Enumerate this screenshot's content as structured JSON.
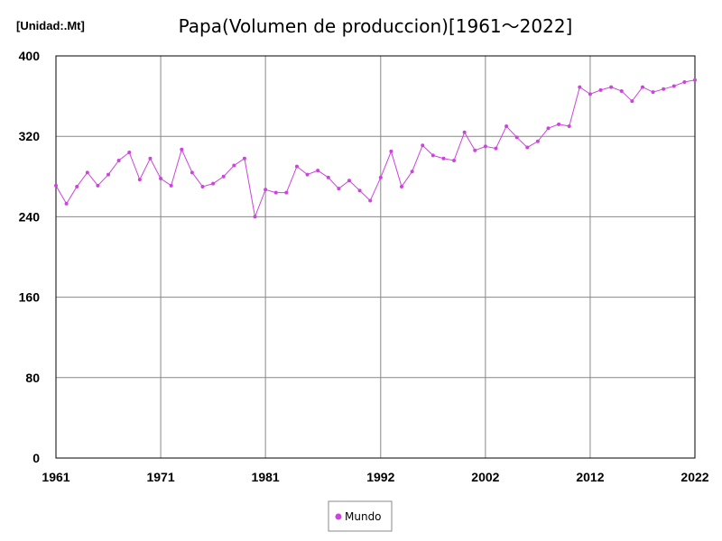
{
  "chart_data": {
    "type": "line",
    "title": "Papa(Volumen de produccion)[1961～2022]",
    "unit_label": "[Unidad:.Mt]",
    "xlabel": "",
    "ylabel": "",
    "ylim": [
      0,
      400
    ],
    "y_ticks": [
      0,
      80,
      160,
      240,
      320,
      400
    ],
    "xlim": [
      1961,
      2022
    ],
    "x_ticks": [
      1961,
      1971,
      1981,
      1992,
      2002,
      2012,
      2022
    ],
    "grid": true,
    "legend_position": "bottom-center",
    "x": [
      1961,
      1962,
      1963,
      1964,
      1965,
      1966,
      1967,
      1968,
      1969,
      1970,
      1971,
      1972,
      1973,
      1974,
      1975,
      1976,
      1977,
      1978,
      1979,
      1980,
      1981,
      1982,
      1983,
      1984,
      1985,
      1986,
      1987,
      1988,
      1989,
      1990,
      1991,
      1992,
      1993,
      1994,
      1995,
      1996,
      1997,
      1998,
      1999,
      2000,
      2001,
      2002,
      2003,
      2004,
      2005,
      2006,
      2007,
      2008,
      2009,
      2010,
      2011,
      2012,
      2013,
      2014,
      2015,
      2016,
      2017,
      2018,
      2019,
      2020,
      2021,
      2022
    ],
    "series": [
      {
        "name": "Mundo",
        "color": "#cc44dd",
        "values": [
          271,
          253,
          270,
          284,
          271,
          282,
          296,
          304,
          277,
          298,
          278,
          271,
          307,
          284,
          270,
          273,
          280,
          291,
          298,
          240,
          267,
          264,
          264,
          290,
          282,
          286,
          279,
          268,
          276,
          266,
          256,
          279,
          305,
          270,
          285,
          311,
          301,
          298,
          296,
          324,
          306,
          310,
          308,
          330,
          319,
          309,
          315,
          328,
          332,
          330,
          369,
          362,
          366,
          369,
          365,
          355,
          369,
          364,
          367,
          370,
          374,
          376
        ]
      }
    ]
  }
}
